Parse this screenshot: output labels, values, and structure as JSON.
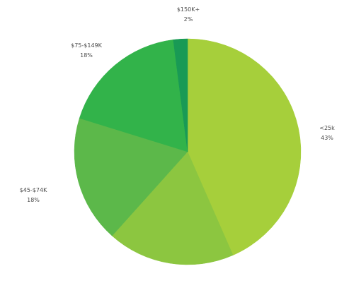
{
  "chart_data": {
    "type": "pie",
    "title": "",
    "start_angle_deg": 0,
    "direction": "clockwise",
    "slices": [
      {
        "label": "<25k",
        "pct_label": "43%",
        "value": 43,
        "color": "#a6cf3b"
      },
      {
        "label": "",
        "pct_label": "",
        "value": 18,
        "color": "#8cc640"
      },
      {
        "label": "$45-$74K",
        "pct_label": "18%",
        "value": 18,
        "color": "#5cb84a"
      },
      {
        "label": "$75-$149K",
        "pct_label": "18%",
        "value": 18,
        "color": "#32b34a"
      },
      {
        "label": "$150K+",
        "pct_label": "2%",
        "value": 2,
        "color": "#199a55"
      }
    ]
  }
}
